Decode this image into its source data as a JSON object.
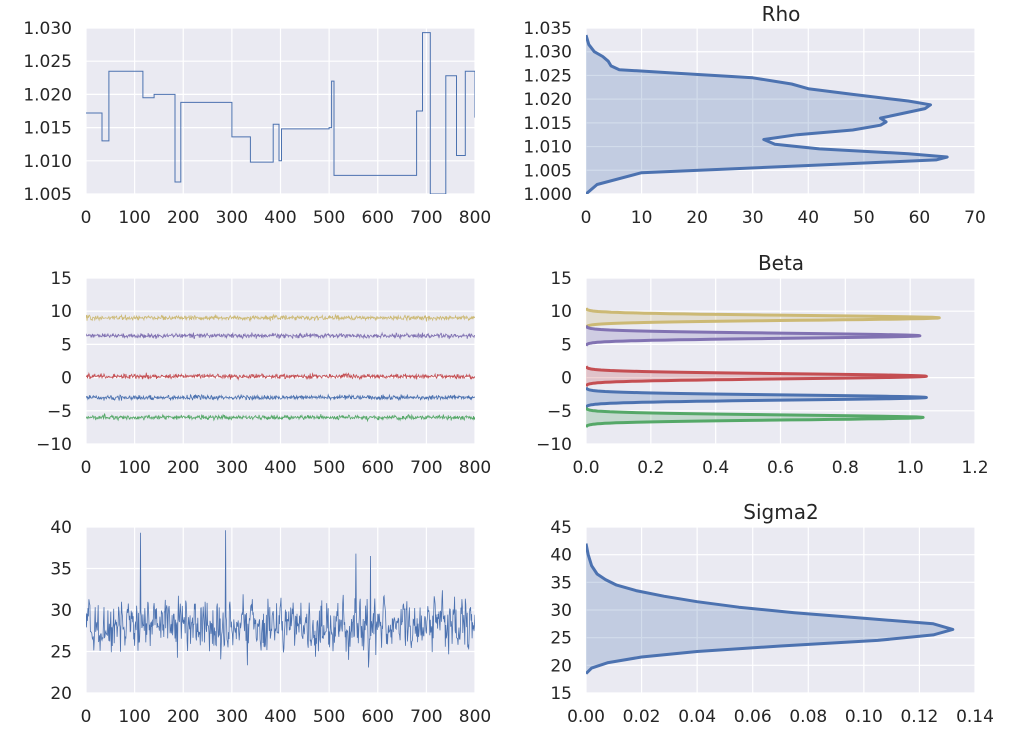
{
  "chart_data": [
    {
      "id": "rho_trace",
      "type": "line",
      "xlim": [
        0,
        800
      ],
      "ylim": [
        1.005,
        1.03
      ],
      "xticks": [
        0,
        100,
        200,
        300,
        400,
        500,
        600,
        700,
        800
      ],
      "yticks": [
        "1.005",
        "1.010",
        "1.015",
        "1.020",
        "1.025",
        "1.030"
      ],
      "grid": true,
      "series": [
        {
          "color": "#4c72b0",
          "steps": [
            [
              0,
              1.0172
            ],
            [
              33,
              1.013
            ],
            [
              47,
              1.0235
            ],
            [
              117,
              1.0195
            ],
            [
              140,
              1.02
            ],
            [
              183,
              1.0068
            ],
            [
              195,
              1.0188
            ],
            [
              300,
              1.0136
            ],
            [
              338,
              1.0098
            ],
            [
              385,
              1.0155
            ],
            [
              397,
              1.01
            ],
            [
              402,
              1.0148
            ],
            [
              500,
              1.015
            ],
            [
              505,
              1.022
            ],
            [
              510,
              1.0078
            ],
            [
              680,
              1.0175
            ],
            [
              692,
              1.0293
            ],
            [
              708,
              1.005
            ],
            [
              740,
              1.0228
            ],
            [
              762,
              1.0108
            ],
            [
              780,
              1.0235
            ],
            [
              800,
              1.0165
            ]
          ]
        }
      ]
    },
    {
      "id": "rho_density",
      "type": "area",
      "title": "Rho",
      "xlim": [
        0,
        70
      ],
      "ylim": [
        1.0,
        1.035
      ],
      "xticks": [
        0,
        10,
        20,
        30,
        40,
        50,
        60,
        70
      ],
      "yticks": [
        "1.000",
        "1.005",
        "1.010",
        "1.015",
        "1.020",
        "1.025",
        "1.030",
        "1.035"
      ],
      "grid": true,
      "series": [
        {
          "color": "#4c72b0",
          "curve": [
            [
              1.0,
              0
            ],
            [
              1.002,
              2
            ],
            [
              1.0045,
              10
            ],
            [
              1.006,
              40
            ],
            [
              1.0072,
              63
            ],
            [
              1.0078,
              65
            ],
            [
              1.0085,
              58
            ],
            [
              1.0095,
              42
            ],
            [
              1.0105,
              34
            ],
            [
              1.0115,
              32
            ],
            [
              1.0125,
              38
            ],
            [
              1.0135,
              48
            ],
            [
              1.0145,
              53
            ],
            [
              1.0152,
              54
            ],
            [
              1.016,
              53
            ],
            [
              1.017,
              57
            ],
            [
              1.018,
              61
            ],
            [
              1.0188,
              62
            ],
            [
              1.0196,
              58
            ],
            [
              1.021,
              48
            ],
            [
              1.0222,
              40
            ],
            [
              1.0232,
              37
            ],
            [
              1.0245,
              30
            ],
            [
              1.0255,
              16
            ],
            [
              1.0262,
              6
            ],
            [
              1.027,
              4.5
            ],
            [
              1.028,
              4
            ],
            [
              1.029,
              3
            ],
            [
              1.03,
              1.5
            ],
            [
              1.0315,
              0.5
            ],
            [
              1.0335,
              0
            ]
          ]
        }
      ]
    },
    {
      "id": "beta_trace",
      "type": "line",
      "xlim": [
        0,
        800
      ],
      "ylim": [
        -10,
        15
      ],
      "xticks": [
        0,
        100,
        200,
        300,
        400,
        500,
        600,
        700,
        800
      ],
      "yticks": [
        "−10",
        "−5",
        "0",
        "5",
        "10",
        "15"
      ],
      "grid": true,
      "series": [
        {
          "color": "#ccb974",
          "mean": 9.0,
          "noise": 0.35
        },
        {
          "color": "#8172b2",
          "mean": 6.3,
          "noise": 0.35
        },
        {
          "color": "#c44e52",
          "mean": 0.2,
          "noise": 0.35
        },
        {
          "color": "#4c72b0",
          "mean": -3.0,
          "noise": 0.35
        },
        {
          "color": "#55a868",
          "mean": -6.0,
          "noise": 0.35
        }
      ]
    },
    {
      "id": "beta_density",
      "type": "area",
      "title": "Beta",
      "xlim": [
        0.0,
        1.2
      ],
      "ylim": [
        -10,
        15
      ],
      "xticks": [
        "0.0",
        "0.2",
        "0.4",
        "0.6",
        "0.8",
        "1.0",
        "1.2"
      ],
      "yticks": [
        "−10",
        "−5",
        "0",
        "5",
        "10",
        "15"
      ],
      "grid": true,
      "series": [
        {
          "color": "#ccb974",
          "mean": 9.0,
          "sd": 0.37,
          "peak": 1.09
        },
        {
          "color": "#8172b2",
          "mean": 6.3,
          "sd": 0.38,
          "peak": 1.03
        },
        {
          "color": "#c44e52",
          "mean": 0.2,
          "sd": 0.38,
          "peak": 1.05
        },
        {
          "color": "#4c72b0",
          "mean": -3.0,
          "sd": 0.38,
          "peak": 1.05
        },
        {
          "color": "#55a868",
          "mean": -6.0,
          "sd": 0.37,
          "peak": 1.04
        }
      ]
    },
    {
      "id": "sigma2_trace",
      "type": "line",
      "xlim": [
        0,
        800
      ],
      "ylim": [
        20,
        40
      ],
      "xticks": [
        0,
        100,
        200,
        300,
        400,
        500,
        600,
        700,
        800
      ],
      "yticks": [
        "20",
        "25",
        "30",
        "35",
        "40"
      ],
      "grid": true,
      "series": [
        {
          "color": "#4c72b0",
          "mean": 28.0,
          "noise": 3.0,
          "spikes": [
            [
              112,
              39.3
            ],
            [
              287,
              39.6
            ],
            [
              555,
              36.8
            ],
            [
              585,
              36.5
            ]
          ]
        }
      ]
    },
    {
      "id": "sigma2_density",
      "type": "area",
      "title": "Sigma2",
      "xlim": [
        0.0,
        0.14
      ],
      "ylim": [
        15,
        45
      ],
      "xticks": [
        "0.00",
        "0.02",
        "0.04",
        "0.06",
        "0.08",
        "0.10",
        "0.12",
        "0.14"
      ],
      "yticks": [
        "15",
        "20",
        "25",
        "30",
        "35",
        "40",
        "45"
      ],
      "grid": true,
      "series": [
        {
          "color": "#4c72b0",
          "curve": [
            [
              18.5,
              0
            ],
            [
              19.5,
              0.002
            ],
            [
              20.5,
              0.008
            ],
            [
              21.5,
              0.02
            ],
            [
              22.5,
              0.04
            ],
            [
              23.5,
              0.07
            ],
            [
              24.5,
              0.105
            ],
            [
              25.5,
              0.125
            ],
            [
              26.5,
              0.132
            ],
            [
              27.5,
              0.125
            ],
            [
              28.5,
              0.1
            ],
            [
              29.5,
              0.075
            ],
            [
              30.5,
              0.055
            ],
            [
              31.5,
              0.04
            ],
            [
              32.5,
              0.028
            ],
            [
              33.5,
              0.018
            ],
            [
              34.5,
              0.011
            ],
            [
              35.5,
              0.007
            ],
            [
              36.5,
              0.004
            ],
            [
              38,
              0.002
            ],
            [
              40,
              0.0008
            ],
            [
              42,
              0
            ]
          ]
        }
      ]
    }
  ]
}
